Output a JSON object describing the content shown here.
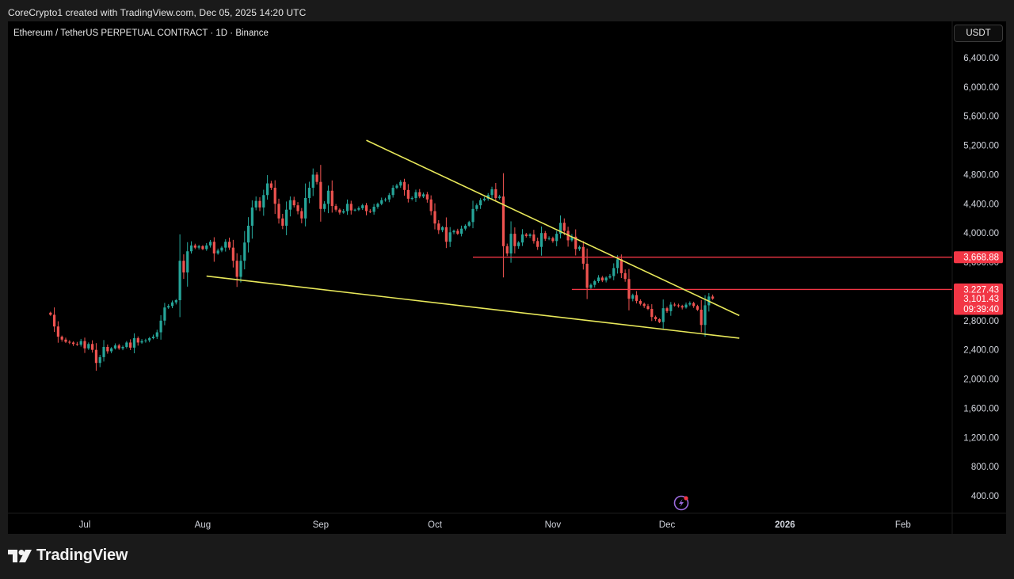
{
  "header": {
    "credit": "CoreCrypto1 created with TradingView.com, Dec 05, 2025 14:20 UTC"
  },
  "symbol": {
    "title": "Ethereum / TetherUS PERPETUAL CONTRACT · 1D · Binance"
  },
  "currency": "USDT",
  "footer": {
    "brand": "TradingView"
  },
  "colors": {
    "background": "#000000",
    "up": "#26a69a",
    "down": "#ef5350",
    "trendline": "#e8e85a",
    "level": "#f23645",
    "price_tag": "#f23645",
    "axis_text": "#d1d4dc"
  },
  "chart_data": {
    "type": "candlestick",
    "timeframe": "1D",
    "ylim": [
      150,
      6800
    ],
    "y_ticks": [
      "6,400.00",
      "6,000.00",
      "5,600.00",
      "5,200.00",
      "4,800.00",
      "4,400.00",
      "4,000.00",
      "3,600.00",
      "3,200.00",
      "2,800.00",
      "2,400.00",
      "2,000.00",
      "1,600.00",
      "1,200.00",
      "800.00",
      "400.00"
    ],
    "x_ticks": [
      {
        "label": "Jul",
        "bold": false
      },
      {
        "label": "Aug",
        "bold": false
      },
      {
        "label": "Sep",
        "bold": false
      },
      {
        "label": "Oct",
        "bold": false
      },
      {
        "label": "Nov",
        "bold": false
      },
      {
        "label": "Dec",
        "bold": false
      },
      {
        "label": "2026",
        "bold": true
      },
      {
        "label": "Feb",
        "bold": false
      }
    ],
    "price_tags": [
      {
        "label": "3,668.88",
        "value": 3668.88
      },
      {
        "label": "3,227.43",
        "value": 3227.43
      },
      {
        "label": "3,101.43",
        "value": 3101.43,
        "sub": "09:39:40"
      }
    ],
    "series": [
      {
        "name": "ETHUSDT",
        "start_date": "2025-06-22",
        "closes": [
          2880,
          2720,
          2580,
          2540,
          2510,
          2500,
          2480,
          2470,
          2520,
          2420,
          2480,
          2400,
          2220,
          2300,
          2440,
          2380,
          2420,
          2460,
          2420,
          2440,
          2500,
          2430,
          2560,
          2500,
          2520,
          2530,
          2560,
          2580,
          2640,
          2800,
          2980,
          3000,
          3050,
          3080,
          3620,
          3460,
          3750,
          3830,
          3800,
          3820,
          3780,
          3830,
          3880,
          3720,
          3760,
          3800,
          3880,
          3800,
          3620,
          3400,
          3620,
          3870,
          4100,
          4350,
          4440,
          4350,
          4520,
          4680,
          4620,
          4400,
          4200,
          4100,
          4320,
          4450,
          4380,
          4300,
          4200,
          4480,
          4620,
          4800,
          4700,
          4330,
          4400,
          4580,
          4370,
          4320,
          4280,
          4300,
          4400,
          4310,
          4320,
          4340,
          4380,
          4300,
          4290,
          4360,
          4400,
          4450,
          4460,
          4520,
          4620,
          4650,
          4700,
          4590,
          4470,
          4480,
          4560,
          4500,
          4530,
          4460,
          4300,
          4130,
          4040,
          4080,
          3880,
          4010,
          4030,
          3990,
          4060,
          4100,
          4150,
          4330,
          4380,
          4450,
          4470,
          4520,
          4600,
          4480,
          4500,
          3820,
          3720,
          3990,
          3820,
          3870,
          3980,
          3960,
          3980,
          3890,
          3810,
          4000,
          3920,
          3930,
          3890,
          3990,
          4140,
          4030,
          3900,
          3950,
          3780,
          3810,
          3580,
          3250,
          3290,
          3340,
          3390,
          3350,
          3390,
          3410,
          3520,
          3640,
          3450,
          3370,
          3100,
          3150,
          3070,
          3030,
          3000,
          2960,
          2850,
          2820,
          2780,
          2970,
          2930,
          3020,
          3010,
          3000,
          2980,
          3020,
          3040,
          3000,
          2950,
          2740,
          3010,
          3130,
          3101.43
        ]
      }
    ],
    "trendlines": [
      {
        "name": "descending-resistance",
        "start": {
          "date": "2025-09-13",
          "price": 5270
        },
        "end": {
          "date": "2025-12-20",
          "price": 2870
        }
      },
      {
        "name": "descending-support",
        "start": {
          "date": "2025-08-02",
          "price": 3410
        },
        "end": {
          "date": "2025-12-20",
          "price": 2560
        }
      }
    ],
    "horizontal_levels": [
      {
        "name": "resistance-3668",
        "price": 3668.88,
        "from_date": "2025-10-11"
      },
      {
        "name": "resistance-3227",
        "price": 3227.43,
        "from_date": "2025-11-06"
      }
    ],
    "grid": false,
    "legend": "none"
  }
}
